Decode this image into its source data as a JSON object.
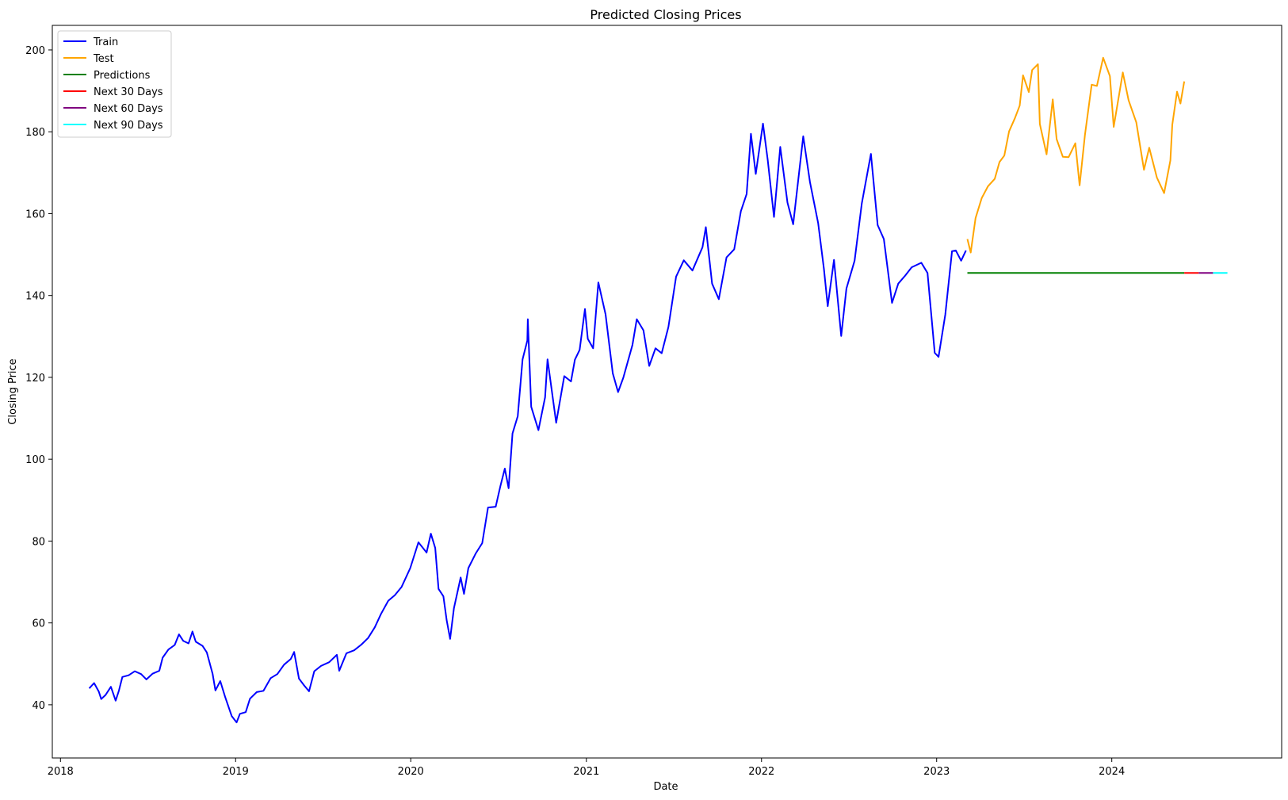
{
  "chart_data": {
    "type": "line",
    "title": "Predicted Closing Prices",
    "xlabel": "Date",
    "ylabel": "Closing Price",
    "xlim": [
      "2017-12-15",
      "2024-12-20"
    ],
    "ylim": [
      27,
      206
    ],
    "x_ticks": [
      "2018",
      "2019",
      "2020",
      "2021",
      "2022",
      "2023",
      "2024"
    ],
    "y_ticks": [
      "40",
      "60",
      "80",
      "100",
      "120",
      "140",
      "160",
      "180",
      "200"
    ],
    "grid": false,
    "legend_position": "top-left",
    "series": [
      {
        "name": "Train",
        "color": "#0000ff",
        "points": [
          [
            "2018-03-02",
            44.0
          ],
          [
            "2018-03-12",
            45.3
          ],
          [
            "2018-03-22",
            43.2
          ],
          [
            "2018-03-27",
            41.4
          ],
          [
            "2018-04-05",
            42.4
          ],
          [
            "2018-04-16",
            44.4
          ],
          [
            "2018-04-26",
            41.0
          ],
          [
            "2018-05-03",
            43.5
          ],
          [
            "2018-05-10",
            46.8
          ],
          [
            "2018-05-23",
            47.2
          ],
          [
            "2018-06-05",
            48.2
          ],
          [
            "2018-06-18",
            47.5
          ],
          [
            "2018-06-29",
            46.2
          ],
          [
            "2018-07-12",
            47.6
          ],
          [
            "2018-07-26",
            48.3
          ],
          [
            "2018-08-02",
            51.5
          ],
          [
            "2018-08-14",
            53.5
          ],
          [
            "2018-08-27",
            54.6
          ],
          [
            "2018-09-05",
            57.2
          ],
          [
            "2018-09-14",
            55.6
          ],
          [
            "2018-09-25",
            55.0
          ],
          [
            "2018-10-03",
            57.9
          ],
          [
            "2018-10-10",
            55.4
          ],
          [
            "2018-10-24",
            54.4
          ],
          [
            "2018-11-02",
            52.8
          ],
          [
            "2018-11-14",
            47.6
          ],
          [
            "2018-11-20",
            43.5
          ],
          [
            "2018-11-30",
            45.8
          ],
          [
            "2018-12-10",
            42.0
          ],
          [
            "2018-12-24",
            37.2
          ],
          [
            "2019-01-03",
            35.7
          ],
          [
            "2019-01-10",
            37.8
          ],
          [
            "2019-01-22",
            38.2
          ],
          [
            "2019-01-31",
            41.5
          ],
          [
            "2019-02-14",
            43.1
          ],
          [
            "2019-02-28",
            43.4
          ],
          [
            "2019-03-15",
            46.5
          ],
          [
            "2019-03-29",
            47.5
          ],
          [
            "2019-04-12",
            49.8
          ],
          [
            "2019-04-26",
            51.2
          ],
          [
            "2019-05-03",
            52.9
          ],
          [
            "2019-05-13",
            46.4
          ],
          [
            "2019-05-24",
            44.7
          ],
          [
            "2019-06-03",
            43.3
          ],
          [
            "2019-06-14",
            48.2
          ],
          [
            "2019-06-28",
            49.5
          ],
          [
            "2019-07-15",
            50.4
          ],
          [
            "2019-07-31",
            52.2
          ],
          [
            "2019-08-05",
            48.3
          ],
          [
            "2019-08-20",
            52.6
          ],
          [
            "2019-09-05",
            53.3
          ],
          [
            "2019-09-20",
            54.7
          ],
          [
            "2019-10-04",
            56.3
          ],
          [
            "2019-10-18",
            58.9
          ],
          [
            "2019-10-31",
            62.2
          ],
          [
            "2019-11-15",
            65.4
          ],
          [
            "2019-11-29",
            66.8
          ],
          [
            "2019-12-13",
            68.8
          ],
          [
            "2019-12-31",
            73.4
          ],
          [
            "2020-01-17",
            79.7
          ],
          [
            "2020-02-03",
            77.2
          ],
          [
            "2020-02-12",
            81.8
          ],
          [
            "2020-02-21",
            78.3
          ],
          [
            "2020-02-28",
            68.3
          ],
          [
            "2020-03-09",
            66.5
          ],
          [
            "2020-03-16",
            60.6
          ],
          [
            "2020-03-23",
            56.1
          ],
          [
            "2020-03-31",
            63.6
          ],
          [
            "2020-04-14",
            71.1
          ],
          [
            "2020-04-21",
            67.1
          ],
          [
            "2020-04-30",
            73.4
          ],
          [
            "2020-05-15",
            76.9
          ],
          [
            "2020-05-29",
            79.5
          ],
          [
            "2020-06-10",
            88.2
          ],
          [
            "2020-06-26",
            88.4
          ],
          [
            "2020-07-06",
            93.5
          ],
          [
            "2020-07-15",
            97.7
          ],
          [
            "2020-07-23",
            92.9
          ],
          [
            "2020-07-31",
            106.3
          ],
          [
            "2020-08-11",
            110.5
          ],
          [
            "2020-08-21",
            124.4
          ],
          [
            "2020-08-31",
            129.0
          ],
          [
            "2020-09-01",
            134.2
          ],
          [
            "2020-09-08",
            112.8
          ],
          [
            "2020-09-23",
            107.1
          ],
          [
            "2020-10-07",
            115.1
          ],
          [
            "2020-10-12",
            124.4
          ],
          [
            "2020-10-30",
            108.9
          ],
          [
            "2020-11-16",
            120.3
          ],
          [
            "2020-11-30",
            119.0
          ],
          [
            "2020-12-08",
            124.3
          ],
          [
            "2020-12-18",
            126.7
          ],
          [
            "2020-12-29",
            136.7
          ],
          [
            "2021-01-04",
            129.4
          ],
          [
            "2021-01-15",
            127.1
          ],
          [
            "2021-01-26",
            143.2
          ],
          [
            "2021-02-10",
            135.4
          ],
          [
            "2021-02-25",
            121.0
          ],
          [
            "2021-03-08",
            116.4
          ],
          [
            "2021-03-19",
            119.9
          ],
          [
            "2021-04-07",
            127.9
          ],
          [
            "2021-04-16",
            134.2
          ],
          [
            "2021-04-30",
            131.5
          ],
          [
            "2021-05-12",
            122.8
          ],
          [
            "2021-05-25",
            127.1
          ],
          [
            "2021-06-07",
            125.9
          ],
          [
            "2021-06-21",
            132.3
          ],
          [
            "2021-07-07",
            144.6
          ],
          [
            "2021-07-23",
            148.6
          ],
          [
            "2021-08-10",
            146.1
          ],
          [
            "2021-08-31",
            151.8
          ],
          [
            "2021-09-07",
            156.7
          ],
          [
            "2021-09-20",
            142.9
          ],
          [
            "2021-10-04",
            139.1
          ],
          [
            "2021-10-20",
            149.3
          ],
          [
            "2021-11-05",
            151.3
          ],
          [
            "2021-11-19",
            160.6
          ],
          [
            "2021-12-01",
            164.8
          ],
          [
            "2021-12-10",
            179.5
          ],
          [
            "2021-12-20",
            169.7
          ],
          [
            "2022-01-04",
            182.0
          ],
          [
            "2022-01-14",
            173.1
          ],
          [
            "2022-01-27",
            159.2
          ],
          [
            "2022-02-09",
            176.3
          ],
          [
            "2022-02-24",
            162.7
          ],
          [
            "2022-03-08",
            157.4
          ],
          [
            "2022-03-29",
            178.9
          ],
          [
            "2022-04-12",
            167.7
          ],
          [
            "2022-04-29",
            157.7
          ],
          [
            "2022-05-11",
            146.5
          ],
          [
            "2022-05-19",
            137.4
          ],
          [
            "2022-06-01",
            148.7
          ],
          [
            "2022-06-16",
            130.1
          ],
          [
            "2022-06-27",
            141.7
          ],
          [
            "2022-07-14",
            148.5
          ],
          [
            "2022-07-29",
            162.5
          ],
          [
            "2022-08-17",
            174.6
          ],
          [
            "2022-08-31",
            157.2
          ],
          [
            "2022-09-13",
            153.8
          ],
          [
            "2022-09-30",
            138.2
          ],
          [
            "2022-10-13",
            142.9
          ],
          [
            "2022-10-27",
            144.8
          ],
          [
            "2022-11-10",
            146.9
          ],
          [
            "2022-11-30",
            148.0
          ],
          [
            "2022-12-13",
            145.5
          ],
          [
            "2022-12-28",
            126.0
          ],
          [
            "2023-01-05",
            125.0
          ],
          [
            "2023-01-19",
            135.3
          ],
          [
            "2023-02-02",
            150.8
          ],
          [
            "2023-02-10",
            151.0
          ],
          [
            "2023-02-21",
            148.5
          ],
          [
            "2023-03-03",
            151.0
          ]
        ]
      },
      {
        "name": "Test",
        "color": "#ffa500",
        "points": [
          [
            "2023-03-06",
            153.8
          ],
          [
            "2023-03-13",
            150.5
          ],
          [
            "2023-03-23",
            158.9
          ],
          [
            "2023-04-05",
            163.8
          ],
          [
            "2023-04-18",
            166.7
          ],
          [
            "2023-05-02",
            168.5
          ],
          [
            "2023-05-12",
            172.6
          ],
          [
            "2023-05-22",
            174.2
          ],
          [
            "2023-06-01",
            180.1
          ],
          [
            "2023-06-13",
            183.3
          ],
          [
            "2023-06-23",
            186.4
          ],
          [
            "2023-06-30",
            193.8
          ],
          [
            "2023-07-12",
            189.7
          ],
          [
            "2023-07-19",
            195.1
          ],
          [
            "2023-07-31",
            196.5
          ],
          [
            "2023-08-04",
            181.9
          ],
          [
            "2023-08-18",
            174.5
          ],
          [
            "2023-08-31",
            187.9
          ],
          [
            "2023-09-08",
            178.2
          ],
          [
            "2023-09-21",
            173.9
          ],
          [
            "2023-10-03",
            173.8
          ],
          [
            "2023-10-17",
            177.2
          ],
          [
            "2023-10-26",
            166.9
          ],
          [
            "2023-11-06",
            179.2
          ],
          [
            "2023-11-20",
            191.5
          ],
          [
            "2023-12-01",
            191.2
          ],
          [
            "2023-12-14",
            198.1
          ],
          [
            "2023-12-28",
            193.6
          ],
          [
            "2024-01-05",
            181.2
          ],
          [
            "2024-01-24",
            194.5
          ],
          [
            "2024-02-05",
            187.7
          ],
          [
            "2024-02-21",
            182.3
          ],
          [
            "2024-03-08",
            170.7
          ],
          [
            "2024-03-19",
            176.1
          ],
          [
            "2024-04-04",
            168.8
          ],
          [
            "2024-04-19",
            165.0
          ],
          [
            "2024-05-02",
            173.0
          ],
          [
            "2024-05-06",
            181.7
          ],
          [
            "2024-05-16",
            189.8
          ],
          [
            "2024-05-23",
            186.9
          ],
          [
            "2024-05-31",
            192.3
          ]
        ]
      },
      {
        "name": "Predictions",
        "color": "#008000",
        "points": [
          [
            "2023-03-06",
            145.5
          ],
          [
            "2024-05-31",
            145.5
          ]
        ]
      },
      {
        "name": "Next 30 Days",
        "color": "#ff0000",
        "points": [
          [
            "2024-05-31",
            145.5
          ],
          [
            "2024-06-30",
            145.5
          ]
        ]
      },
      {
        "name": "Next 60 Days",
        "color": "#800080",
        "points": [
          [
            "2024-06-30",
            145.5
          ],
          [
            "2024-07-30",
            145.5
          ]
        ]
      },
      {
        "name": "Next 90 Days",
        "color": "#00ffff",
        "points": [
          [
            "2024-07-30",
            145.5
          ],
          [
            "2024-08-29",
            145.5
          ]
        ]
      }
    ]
  }
}
